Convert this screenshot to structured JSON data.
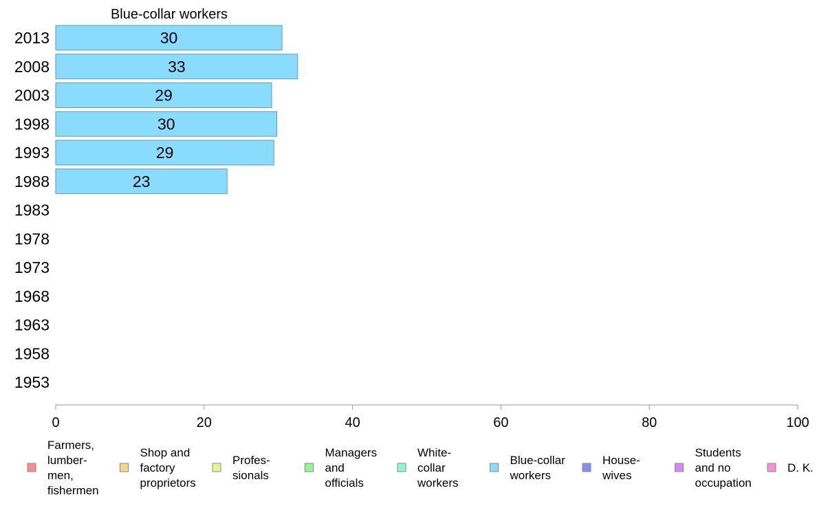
{
  "chart_data": {
    "type": "bar",
    "orientation": "horizontal",
    "title": "Blue-collar workers",
    "categories": [
      "2013",
      "2008",
      "2003",
      "1998",
      "1993",
      "1988",
      "1983",
      "1978",
      "1973",
      "1968",
      "1963",
      "1958",
      "1953"
    ],
    "series": [
      {
        "name": "Blue-collar workers",
        "values": [
          30.5,
          32.6,
          29.1,
          29.8,
          29.4,
          23.1,
          null,
          null,
          null,
          null,
          null,
          null,
          null
        ]
      }
    ],
    "data_labels": [
      "30",
      "33",
      "29",
      "30",
      "29",
      "23",
      "",
      "",
      "",
      "",
      "",
      "",
      ""
    ],
    "xlim": [
      0,
      100
    ],
    "xticks": [
      "0",
      "20",
      "40",
      "60",
      "80",
      "100"
    ],
    "grid": false,
    "legend_position": "bottom",
    "legend": [
      {
        "label": "Farmers, lumber- men, fishermen",
        "lines": [
          "Farmers,",
          "lumber-",
          "men,",
          "fishermen"
        ],
        "color": "#f88f8f"
      },
      {
        "label": "Shop and factory proprietors",
        "lines": [
          "Shop and",
          "factory",
          "proprietors"
        ],
        "color": "#f8d68a"
      },
      {
        "label": "Profes- sionals",
        "lines": [
          "Profes-",
          "sionals"
        ],
        "color": "#e2f88f"
      },
      {
        "label": "Managers and officials",
        "lines": [
          "Managers",
          "and",
          "officials"
        ],
        "color": "#8ff88f"
      },
      {
        "label": "White- collar workers",
        "lines": [
          "White-",
          "collar",
          "workers"
        ],
        "color": "#8ff8d6"
      },
      {
        "label": "Blue-collar workers",
        "lines": [
          "Blue-collar",
          "workers"
        ],
        "color": "#8adcff"
      },
      {
        "label": "House- wives",
        "lines": [
          "House-",
          "wives"
        ],
        "color": "#8a8af8"
      },
      {
        "label": "Students and no occupation",
        "lines": [
          "Students",
          "and no",
          "occupation"
        ],
        "color": "#d68af8"
      },
      {
        "label": "D. K.",
        "lines": [
          "D. K."
        ],
        "color": "#f88fd6"
      }
    ],
    "colors": {
      "bar_fill": "#8adcff",
      "bar_stroke": "#5b9bb3",
      "axis": "#999999"
    }
  }
}
